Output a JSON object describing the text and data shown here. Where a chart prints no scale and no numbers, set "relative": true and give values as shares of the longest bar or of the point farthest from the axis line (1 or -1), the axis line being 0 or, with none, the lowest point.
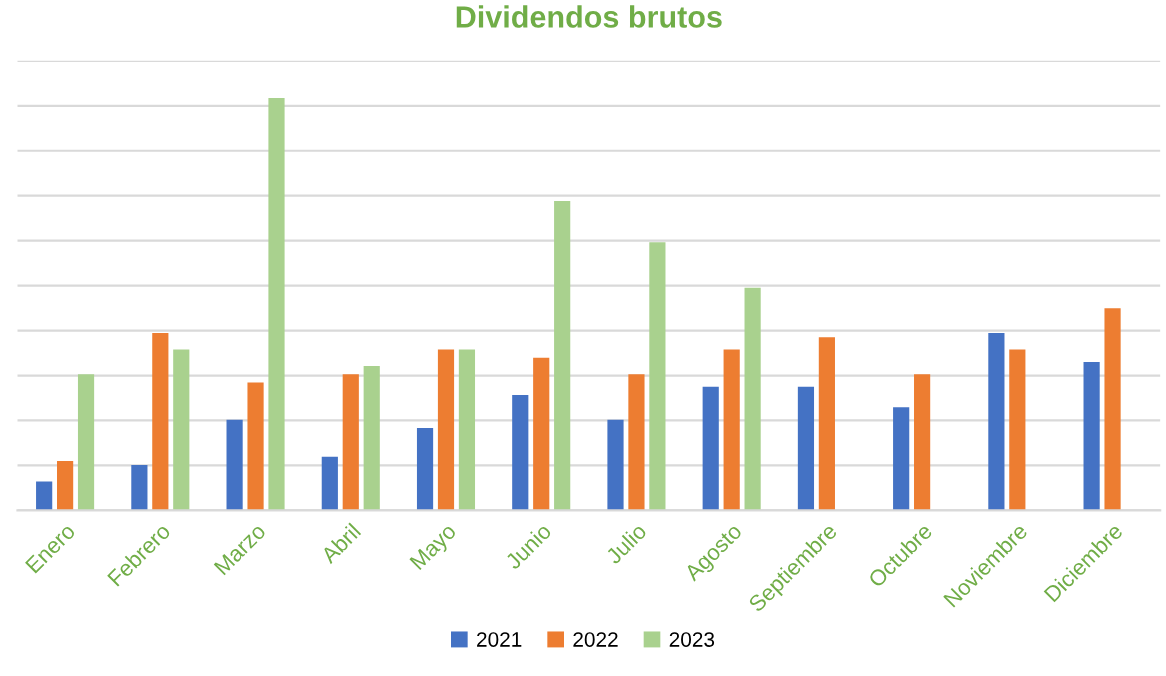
{
  "chart_data": {
    "type": "bar",
    "title": "Dividendos brutos",
    "relative": true,
    "grid": "y",
    "legend": "bottom",
    "categories": [
      "Enero",
      "Febrero",
      "Marzo",
      "Abril",
      "Mayo",
      "Junio",
      "Julio",
      "Agosto",
      "Septiembre",
      "Octubre",
      "Noviembre",
      "Diciembre"
    ],
    "series": [
      {
        "name": "2021",
        "color": "#4472c4",
        "values": [
          0.07,
          0.11,
          0.22,
          0.13,
          0.2,
          0.28,
          0.22,
          0.3,
          0.3,
          0.25,
          0.43,
          0.36
        ]
      },
      {
        "name": "2022",
        "color": "#ed7d31",
        "values": [
          0.12,
          0.43,
          0.31,
          0.33,
          0.39,
          0.37,
          0.33,
          0.39,
          0.42,
          0.33,
          0.39,
          0.49
        ]
      },
      {
        "name": "2023",
        "color": "#a9d18e",
        "values": [
          0.33,
          0.39,
          1,
          0.35,
          0.39,
          0.75,
          0.65,
          0.54,
          null,
          null,
          null,
          null
        ]
      }
    ]
  }
}
